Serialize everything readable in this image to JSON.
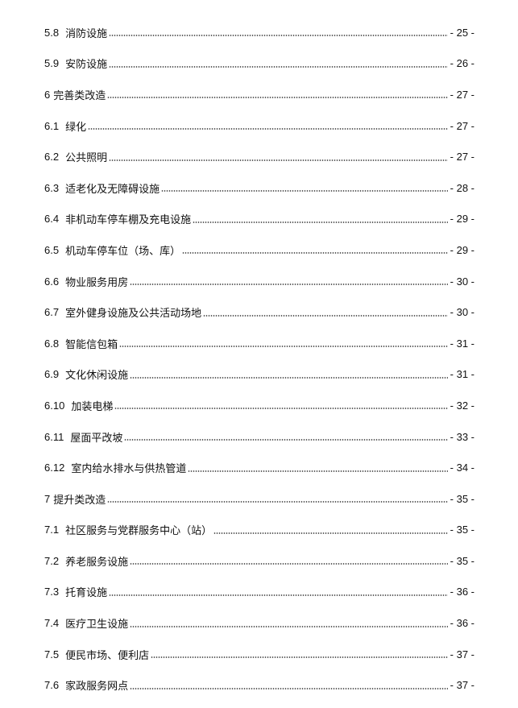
{
  "toc": [
    {
      "number": "5.8",
      "title": "消防设施",
      "page": "- 25 -",
      "chapter": false
    },
    {
      "number": "5.9",
      "title": "安防设施",
      "page": "- 26 -",
      "chapter": false
    },
    {
      "number": "6",
      "title": "完善类改造",
      "page": "- 27 -",
      "chapter": true
    },
    {
      "number": "6.1",
      "title": "绿化",
      "page": "- 27 -",
      "chapter": false
    },
    {
      "number": "6.2",
      "title": "公共照明",
      "page": "- 27 -",
      "chapter": false
    },
    {
      "number": "6.3",
      "title": "适老化及无障碍设施",
      "page": "- 28 -",
      "chapter": false
    },
    {
      "number": "6.4",
      "title": "非机动车停车棚及充电设施",
      "page": "- 29 -",
      "chapter": false
    },
    {
      "number": "6.5",
      "title": "机动车停车位（场、库）",
      "page": "- 29 -",
      "chapter": false
    },
    {
      "number": "6.6",
      "title": "物业服务用房",
      "page": "- 30 -",
      "chapter": false
    },
    {
      "number": "6.7",
      "title": "室外健身设施及公共活动场地",
      "page": "- 30 -",
      "chapter": false
    },
    {
      "number": "6.8",
      "title": "智能信包箱",
      "page": "- 31 -",
      "chapter": false
    },
    {
      "number": "6.9",
      "title": "文化休闲设施",
      "page": "- 31 -",
      "chapter": false
    },
    {
      "number": "6.10",
      "title": "加装电梯",
      "page": "- 32 -",
      "chapter": false
    },
    {
      "number": "6.11",
      "title": "屋面平改坡",
      "page": "- 33 -",
      "chapter": false
    },
    {
      "number": "6.12",
      "title": "室内给水排水与供热管道",
      "page": "- 34 -",
      "chapter": false
    },
    {
      "number": "7",
      "title": "提升类改造",
      "page": "- 35 -",
      "chapter": true
    },
    {
      "number": "7.1",
      "title": "社区服务与党群服务中心（站）",
      "page": "- 35 -",
      "chapter": false
    },
    {
      "number": "7.2",
      "title": "养老服务设施",
      "page": "- 35 -",
      "chapter": false
    },
    {
      "number": "7.3",
      "title": "托育设施",
      "page": "- 36 -",
      "chapter": false
    },
    {
      "number": "7.4",
      "title": "医疗卫生设施",
      "page": "- 36 -",
      "chapter": false
    },
    {
      "number": "7.5",
      "title": "便民市场、便利店",
      "page": "- 37 -",
      "chapter": false
    },
    {
      "number": "7.6",
      "title": "家政服务网点",
      "page": "- 37 -",
      "chapter": false
    }
  ]
}
